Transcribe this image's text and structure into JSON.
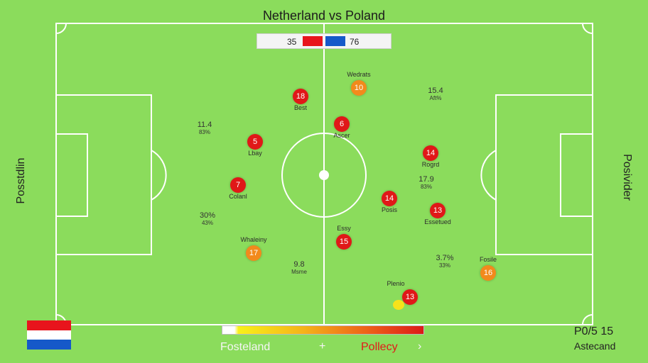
{
  "header": {
    "title": "Netherland vs Poland",
    "score_left": "35",
    "score_right": "76"
  },
  "colors": {
    "pitch": "#8bdc5c",
    "home_red": "#e01818",
    "away_blue": "#1559c9",
    "highlight_orange": "#f28a1c"
  },
  "side_labels": {
    "left": "Posstdlin",
    "right": "Posivider"
  },
  "players": [
    {
      "number": "18",
      "label": "Best",
      "color": "red"
    },
    {
      "number": "10",
      "label": "Wedrats",
      "color": "orange"
    },
    {
      "number": "6",
      "label": "Ascer",
      "color": "red"
    },
    {
      "number": "5",
      "label": "Lbay",
      "color": "red"
    },
    {
      "number": "14",
      "label": "Rogrd",
      "color": "red"
    },
    {
      "number": "7",
      "label": "Colanl",
      "color": "red"
    },
    {
      "number": "14",
      "label": "Posis",
      "color": "red"
    },
    {
      "number": "13",
      "label": "Essetued",
      "color": "red"
    },
    {
      "number": "15",
      "label": "Essy",
      "color": "red"
    },
    {
      "number": "17",
      "label": "Whaleiny",
      "color": "orange"
    },
    {
      "number": "16",
      "label": "Fosile",
      "color": "orange"
    },
    {
      "number": "13",
      "label": "Plenio",
      "color": "red"
    }
  ],
  "stats": [
    {
      "value": "11.4",
      "pct": "83%"
    },
    {
      "value": "15.4",
      "pct": "Aft%"
    },
    {
      "value": "17.9",
      "pct": "83%"
    },
    {
      "value": "30%",
      "pct": "43%"
    },
    {
      "value": "3.7%",
      "pct": "33%"
    },
    {
      "value": "9.8",
      "pct": "Msme"
    }
  ],
  "footer": {
    "legend_left": "Fosteland",
    "legend_plus": "+",
    "legend_right": "Pollecy",
    "legend_next": "›",
    "score": "P0/5 15",
    "label": "Astecand"
  },
  "flag": {
    "stripes": [
      "#e8141c",
      "#ffffff",
      "#1559c9"
    ]
  }
}
